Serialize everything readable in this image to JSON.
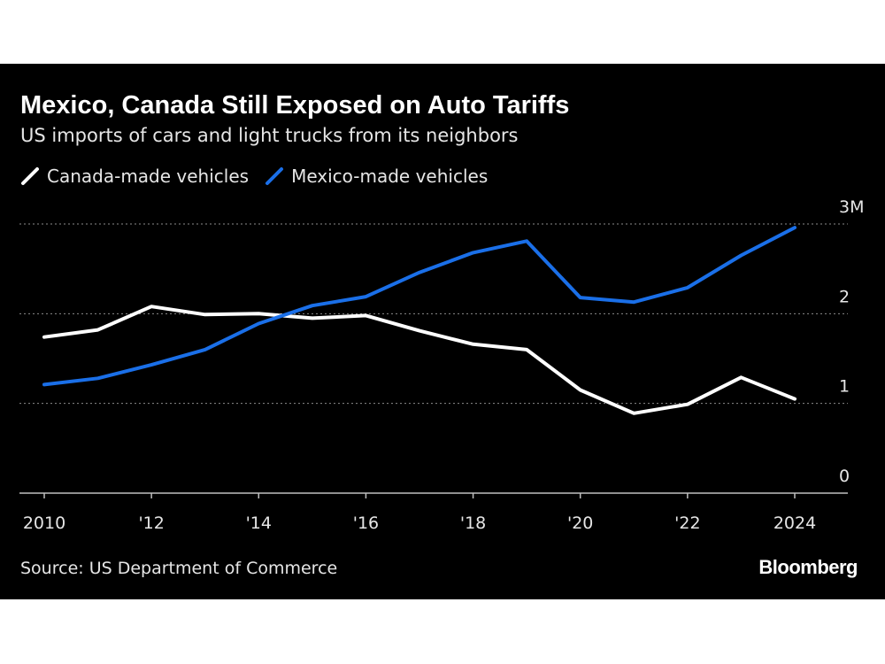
{
  "colors": {
    "background": "#000000",
    "canada": "#ffffff",
    "mexico": "#1a6fe8",
    "grid": "#8c8c8c",
    "axis": "#bfbfbf"
  },
  "brand": "Bloomberg",
  "source": "Source: US Department of Commerce",
  "chart_data": {
    "type": "line",
    "title": "Mexico, Canada Still Exposed on Auto Tariffs",
    "subtitle": "US imports of cars and light trucks from its neighbors",
    "x": [
      2010,
      2011,
      2012,
      2013,
      2014,
      2015,
      2016,
      2017,
      2018,
      2019,
      2020,
      2021,
      2022,
      2023,
      2024
    ],
    "x_tick_values": [
      2010,
      2012,
      2014,
      2016,
      2018,
      2020,
      2022,
      2024
    ],
    "x_tick_labels": [
      "2010",
      "'12",
      "'14",
      "'16",
      "'18",
      "'20",
      "'22",
      "2024"
    ],
    "y_tick_values": [
      0,
      1,
      2,
      3
    ],
    "y_tick_labels": [
      "0",
      "1",
      "2",
      "3M"
    ],
    "ylim": [
      0,
      3
    ],
    "grid": true,
    "legend_position": "top-left",
    "series": [
      {
        "name": "Canada-made vehicles",
        "color": "#ffffff",
        "values": [
          1.74,
          1.82,
          2.08,
          1.99,
          2.0,
          1.95,
          1.98,
          1.81,
          1.66,
          1.6,
          1.15,
          0.89,
          0.99,
          1.29,
          1.05
        ]
      },
      {
        "name": "Mexico-made vehicles",
        "color": "#1a6fe8",
        "values": [
          1.21,
          1.28,
          1.43,
          1.6,
          1.89,
          2.09,
          2.19,
          2.46,
          2.68,
          2.81,
          2.18,
          2.13,
          2.29,
          2.65,
          2.96
        ]
      }
    ]
  }
}
